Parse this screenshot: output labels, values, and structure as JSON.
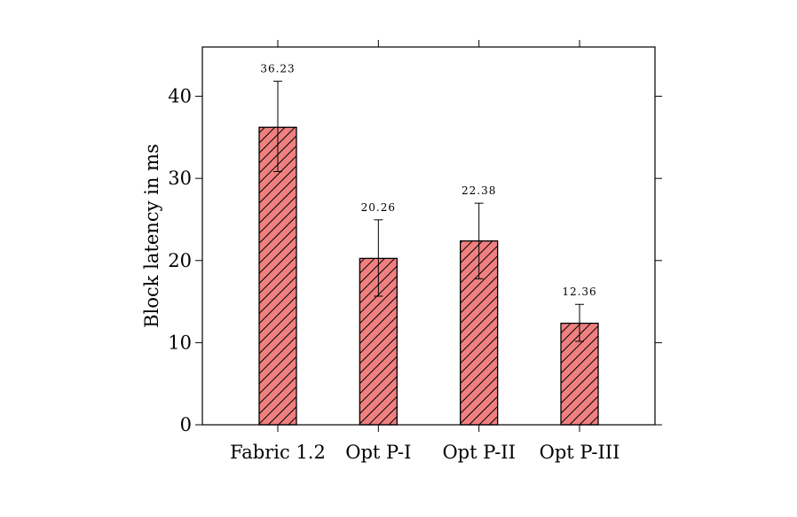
{
  "chart_data": {
    "type": "bar",
    "title": "",
    "xlabel": "",
    "ylabel": "Block latency in ms",
    "categories": [
      "Fabric 1.2",
      "Opt P-I",
      "Opt P-II",
      "Opt P-III"
    ],
    "series": [
      {
        "values": [
          36.23,
          20.26,
          22.38,
          12.36
        ],
        "error_plus": [
          5.6,
          4.7,
          4.6,
          2.3
        ],
        "error_minus": [
          5.4,
          4.6,
          4.6,
          2.2
        ],
        "color": "#f08080",
        "pattern": "diagonal-hatch"
      }
    ],
    "data_labels": [
      "36.23",
      "20.26",
      "22.38",
      "12.36"
    ],
    "yticks": [
      0,
      10,
      20,
      30,
      40
    ],
    "ytick_labels": [
      "0",
      "10",
      "20",
      "30",
      "40"
    ],
    "ylim": [
      0,
      46
    ],
    "grid": false,
    "legend": "none"
  }
}
